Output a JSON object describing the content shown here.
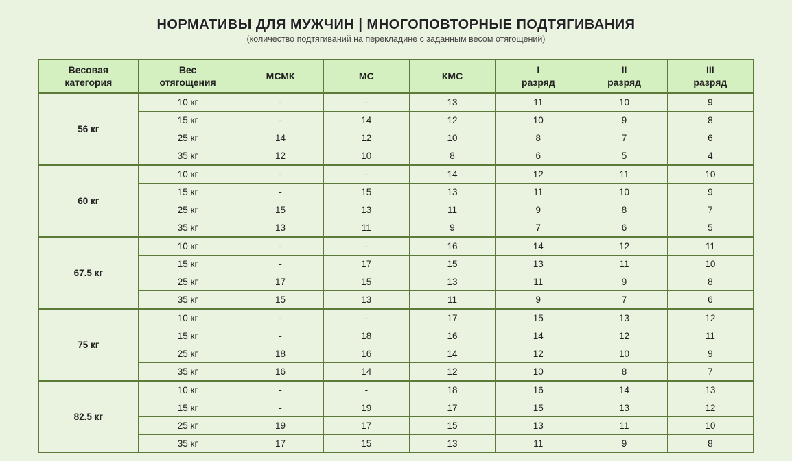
{
  "page": {
    "title": "НОРМАТИВЫ ДЛЯ МУЖЧИН | МНОГОПОВТОРНЫЕ ПОДТЯГИВАНИЯ",
    "subtitle": "(количество подтягиваний на перекладине с заданным весом отягощений)",
    "background_color": "#eaf2e0",
    "border_color": "#5e7a3a",
    "header_bg_color": "#d5f0c0",
    "text_color": "#222222"
  },
  "table": {
    "columns": [
      {
        "key": "category",
        "label_line1": "Весовая",
        "label_line2": "категория"
      },
      {
        "key": "weight",
        "label_line1": "Вес",
        "label_line2": "отягощения"
      },
      {
        "key": "msmk",
        "label_line1": "МСМК",
        "label_line2": ""
      },
      {
        "key": "ms",
        "label_line1": "МС",
        "label_line2": ""
      },
      {
        "key": "kms",
        "label_line1": "КМС",
        "label_line2": ""
      },
      {
        "key": "r1",
        "label_line1": "I",
        "label_line2": "разряд"
      },
      {
        "key": "r2",
        "label_line1": "II",
        "label_line2": "разряд"
      },
      {
        "key": "r3",
        "label_line1": "III",
        "label_line2": "разряд"
      }
    ],
    "groups": [
      {
        "category": "56 кг",
        "rows": [
          {
            "weight": "10 кг",
            "msmk": "-",
            "ms": "-",
            "kms": "13",
            "r1": "11",
            "r2": "10",
            "r3": "9"
          },
          {
            "weight": "15 кг",
            "msmk": "-",
            "ms": "14",
            "kms": "12",
            "r1": "10",
            "r2": "9",
            "r3": "8"
          },
          {
            "weight": "25 кг",
            "msmk": "14",
            "ms": "12",
            "kms": "10",
            "r1": "8",
            "r2": "7",
            "r3": "6"
          },
          {
            "weight": "35 кг",
            "msmk": "12",
            "ms": "10",
            "kms": "8",
            "r1": "6",
            "r2": "5",
            "r3": "4"
          }
        ]
      },
      {
        "category": "60 кг",
        "rows": [
          {
            "weight": "10 кг",
            "msmk": "-",
            "ms": "-",
            "kms": "14",
            "r1": "12",
            "r2": "11",
            "r3": "10"
          },
          {
            "weight": "15 кг",
            "msmk": "-",
            "ms": "15",
            "kms": "13",
            "r1": "11",
            "r2": "10",
            "r3": "9"
          },
          {
            "weight": "25 кг",
            "msmk": "15",
            "ms": "13",
            "kms": "11",
            "r1": "9",
            "r2": "8",
            "r3": "7"
          },
          {
            "weight": "35 кг",
            "msmk": "13",
            "ms": "11",
            "kms": "9",
            "r1": "7",
            "r2": "6",
            "r3": "5"
          }
        ]
      },
      {
        "category": "67.5 кг",
        "rows": [
          {
            "weight": "10 кг",
            "msmk": "-",
            "ms": "-",
            "kms": "16",
            "r1": "14",
            "r2": "12",
            "r3": "11"
          },
          {
            "weight": "15 кг",
            "msmk": "-",
            "ms": "17",
            "kms": "15",
            "r1": "13",
            "r2": "11",
            "r3": "10"
          },
          {
            "weight": "25 кг",
            "msmk": "17",
            "ms": "15",
            "kms": "13",
            "r1": "11",
            "r2": "9",
            "r3": "8"
          },
          {
            "weight": "35 кг",
            "msmk": "15",
            "ms": "13",
            "kms": "11",
            "r1": "9",
            "r2": "7",
            "r3": "6"
          }
        ]
      },
      {
        "category": "75 кг",
        "rows": [
          {
            "weight": "10 кг",
            "msmk": "-",
            "ms": "-",
            "kms": "17",
            "r1": "15",
            "r2": "13",
            "r3": "12"
          },
          {
            "weight": "15 кг",
            "msmk": "-",
            "ms": "18",
            "kms": "16",
            "r1": "14",
            "r2": "12",
            "r3": "11"
          },
          {
            "weight": "25 кг",
            "msmk": "18",
            "ms": "16",
            "kms": "14",
            "r1": "12",
            "r2": "10",
            "r3": "9"
          },
          {
            "weight": "35 кг",
            "msmk": "16",
            "ms": "14",
            "kms": "12",
            "r1": "10",
            "r2": "8",
            "r3": "7"
          }
        ]
      },
      {
        "category": "82.5 кг",
        "rows": [
          {
            "weight": "10 кг",
            "msmk": "-",
            "ms": "-",
            "kms": "18",
            "r1": "16",
            "r2": "14",
            "r3": "13"
          },
          {
            "weight": "15 кг",
            "msmk": "-",
            "ms": "19",
            "kms": "17",
            "r1": "15",
            "r2": "13",
            "r3": "12"
          },
          {
            "weight": "25 кг",
            "msmk": "19",
            "ms": "17",
            "kms": "15",
            "r1": "13",
            "r2": "11",
            "r3": "10"
          },
          {
            "weight": "35 кг",
            "msmk": "17",
            "ms": "15",
            "kms": "13",
            "r1": "11",
            "r2": "9",
            "r3": "8"
          }
        ]
      }
    ]
  }
}
